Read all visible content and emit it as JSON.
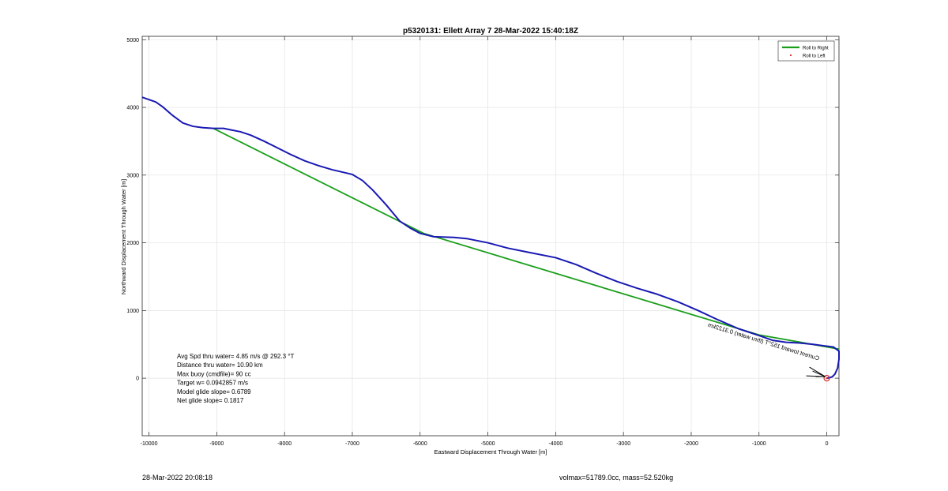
{
  "chart_data": {
    "type": "line",
    "title": "p5320131: Ellett Array 7 28-Mar-2022 15:40:18Z",
    "xlabel": "Eastward Displacement Through Water [m]",
    "ylabel": "Northward Displacement Through Water [m]",
    "xlim": [
      -10100,
      180
    ],
    "ylim": [
      -850,
      5050
    ],
    "xticks": [
      -10000,
      -9000,
      -8000,
      -7000,
      -6000,
      -5000,
      -4000,
      -3000,
      -2000,
      -1000,
      0
    ],
    "yticks": [
      0,
      1000,
      2000,
      3000,
      4000,
      5000
    ],
    "grid": true,
    "legend_position": "top-right",
    "legend": [
      {
        "label": "Roll to Right",
        "color": "#1a9e1a",
        "marker": "line"
      },
      {
        "label": "Roll to Left",
        "color": "#d62728",
        "marker": "dot"
      }
    ],
    "series": [
      {
        "color": "#1919b3",
        "x": [
          -10100,
          -9900,
          -9800,
          -9650,
          -9500,
          -9350,
          -9200,
          -9050,
          -8900,
          -8800,
          -8650,
          -8500,
          -8300,
          -8100,
          -7900,
          -7700,
          -7500,
          -7300,
          -7000,
          -6850,
          -6700,
          -6500,
          -6300,
          -6150,
          -6000,
          -5800,
          -5500,
          -5300,
          -5000,
          -4700,
          -4400,
          -4000,
          -3700,
          -3400,
          -3100,
          -2800,
          -2500,
          -2200,
          -1900,
          -1600,
          -1300,
          -1000,
          -800,
          -600,
          -400,
          -200,
          -50,
          100,
          180,
          180,
          160,
          120,
          80,
          30,
          0
        ],
        "y": [
          4150,
          4080,
          4010,
          3880,
          3770,
          3720,
          3700,
          3690,
          3690,
          3670,
          3640,
          3590,
          3500,
          3400,
          3300,
          3210,
          3140,
          3080,
          3010,
          2920,
          2780,
          2560,
          2320,
          2220,
          2140,
          2090,
          2080,
          2060,
          2000,
          1920,
          1860,
          1780,
          1680,
          1550,
          1430,
          1330,
          1240,
          1130,
          1000,
          860,
          730,
          630,
          560,
          530,
          520,
          500,
          480,
          460,
          400,
          280,
          150,
          60,
          20,
          5,
          0
        ]
      },
      {
        "color": "#1a9e1a",
        "x": [
          -9050,
          -5950,
          -1000,
          180
        ],
        "y": [
          3690,
          2140,
          640,
          430
        ]
      },
      {
        "color": "#d62728",
        "x": [
          0
        ],
        "y": [
          0
        ]
      }
    ],
    "annotations": [
      "Avg Spd thru water=  4.85 m/s @ 292.3 °T",
      "Distance thru water= 10.90 km",
      "Max buoy (cmdfile)= 90 cc",
      "Target w= 0.0942857 m/s",
      "Model glide slope= 0.6789",
      "Net glide slope= 0.1817"
    ],
    "rotated_annotation": "Current toward 152°T (thru water) 0.3122km"
  },
  "footer": {
    "left": "28-Mar-2022 20:08:18",
    "right": "volmax=51789.0cc, mass=52.520kg"
  }
}
